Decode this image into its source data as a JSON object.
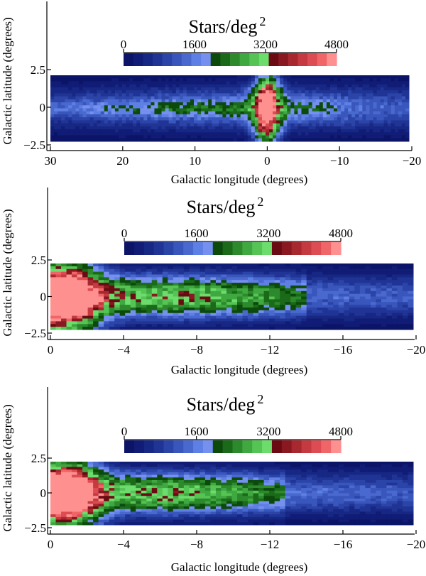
{
  "palette": {
    "blues": [
      "#0b1467",
      "#101c75",
      "#172784",
      "#203495",
      "#2b44a8",
      "#3956bc",
      "#4a69cf",
      "#5e80e4",
      "#7590ee"
    ],
    "greens": [
      "#0c4a0c",
      "#1a6a1a",
      "#2c8a2c",
      "#40a840",
      "#55c455",
      "#6cdc6c"
    ],
    "reds": [
      "#6a0a12",
      "#8a1820",
      "#a82830",
      "#c43a40",
      "#dc4c52",
      "#f06668",
      "#ff9090"
    ]
  },
  "chart_data": [
    {
      "type": "heatmap",
      "title": "Stars/deg",
      "title_superscript": "2",
      "xlabel": "Galactic longitude (degrees)",
      "ylabel": "Galactic latitude (degrees)",
      "xlim": [
        30,
        -20
      ],
      "ylim": [
        -2.5,
        2.5
      ],
      "x_ticks": [
        30,
        20,
        10,
        0,
        -10,
        -20
      ],
      "x_tick_labels": [
        "30",
        "20",
        "10",
        "0",
        "−10",
        "−20"
      ],
      "y_ticks": [
        2.5,
        0,
        -2.5
      ],
      "y_tick_labels": [
        "2.5",
        "0",
        "−2.5"
      ],
      "data_x_range": [
        30,
        -20
      ],
      "data_y_range": [
        -2.2,
        2.2
      ],
      "colorbar": {
        "min": 0,
        "max": 4800,
        "ticks": [
          0,
          1600,
          3200,
          4800
        ],
        "tick_labels": [
          "0",
          "1600",
          "3200",
          "4800"
        ]
      },
      "map": {
        "grid": [
          100,
          22
        ],
        "components": [
          {
            "kind": "band",
            "l_range": [
              30,
              -20
            ],
            "peak": 1500,
            "b_sigma": 1.0,
            "falloff": 0.02
          },
          {
            "kind": "blob",
            "l": -0.2,
            "b": 0.9,
            "peak": 3900,
            "sigma_l": 1.2,
            "sigma_b": 0.9
          },
          {
            "kind": "blob",
            "l": -0.2,
            "b": -1.0,
            "peak": 3800,
            "sigma_l": 1.2,
            "sigma_b": 0.9
          },
          {
            "kind": "ridge",
            "l_range": [
              30,
              -10
            ],
            "b": 0.0,
            "peak": 800,
            "b_sigma": 0.35
          }
        ]
      }
    },
    {
      "type": "heatmap",
      "title": "Stars/deg",
      "title_superscript": "2",
      "xlabel": "Galactic longitude (degrees)",
      "ylabel": "Galactic latitude (degrees)",
      "xlim": [
        0,
        -20
      ],
      "ylim": [
        -2.5,
        2.5
      ],
      "x_ticks": [
        0,
        -4,
        -8,
        -12,
        -16,
        -20
      ],
      "x_tick_labels": [
        "0",
        "−4",
        "−8",
        "−12",
        "−16",
        "−20"
      ],
      "y_ticks": [
        2.5,
        0,
        -2.5
      ],
      "y_tick_labels": [
        "2.5",
        "0",
        "−2.5"
      ],
      "data_x_range": [
        0,
        -20
      ],
      "data_y_range": [
        -2.2,
        2.2
      ],
      "colorbar": {
        "min": 0,
        "max": 4800,
        "ticks": [
          0,
          1600,
          3200,
          4800
        ],
        "tick_labels": [
          "0",
          "1600",
          "3200",
          "4800"
        ]
      },
      "map": {
        "grid": [
          68,
          24
        ],
        "components": [
          {
            "kind": "band",
            "l_range": [
              0,
              -20
            ],
            "peak": 1500,
            "b_sigma": 1.0,
            "falloff": 0.02
          },
          {
            "kind": "blob",
            "l": -0.7,
            "b": 0.8,
            "peak": 4200,
            "sigma_l": 1.3,
            "sigma_b": 1.1
          },
          {
            "kind": "blob",
            "l": -0.7,
            "b": -1.0,
            "peak": 4000,
            "sigma_l": 1.3,
            "sigma_b": 1.1
          },
          {
            "kind": "ridge",
            "l_range": [
              0,
              -14
            ],
            "b": 0.0,
            "peak": 1900,
            "b_sigma": 0.9
          }
        ]
      }
    },
    {
      "type": "heatmap",
      "title": "Stars/deg",
      "title_superscript": "2",
      "xlabel": "Galactic longitude (degrees)",
      "ylabel": "Galactic latitude (degrees)",
      "xlim": [
        0,
        -20
      ],
      "ylim": [
        -2.5,
        2.5
      ],
      "x_ticks": [
        0,
        -4,
        -8,
        -12,
        -16,
        -20
      ],
      "x_tick_labels": [
        "0",
        "−4",
        "−8",
        "−12",
        "−16",
        "−20"
      ],
      "y_ticks": [
        2.5,
        0,
        -2.5
      ],
      "y_tick_labels": [
        "2.5",
        "0",
        "−2.5"
      ],
      "data_x_range": [
        0,
        -20
      ],
      "data_y_range": [
        -2.2,
        2.2
      ],
      "colorbar": {
        "min": 0,
        "max": 4800,
        "ticks": [
          0,
          1600,
          3200,
          4800
        ],
        "tick_labels": [
          "0",
          "1600",
          "3200",
          "4800"
        ]
      },
      "map": {
        "grid": [
          68,
          24
        ],
        "components": [
          {
            "kind": "band",
            "l_range": [
              0,
              -20
            ],
            "peak": 1500,
            "b_sigma": 1.0,
            "falloff": 0.02
          },
          {
            "kind": "blob",
            "l": -0.7,
            "b": 0.8,
            "peak": 4100,
            "sigma_l": 1.3,
            "sigma_b": 1.1
          },
          {
            "kind": "blob",
            "l": -0.7,
            "b": -1.0,
            "peak": 3900,
            "sigma_l": 1.3,
            "sigma_b": 1.1
          },
          {
            "kind": "ridge",
            "l_range": [
              0,
              -13
            ],
            "b": 0.0,
            "peak": 1850,
            "b_sigma": 0.9
          }
        ]
      }
    }
  ]
}
